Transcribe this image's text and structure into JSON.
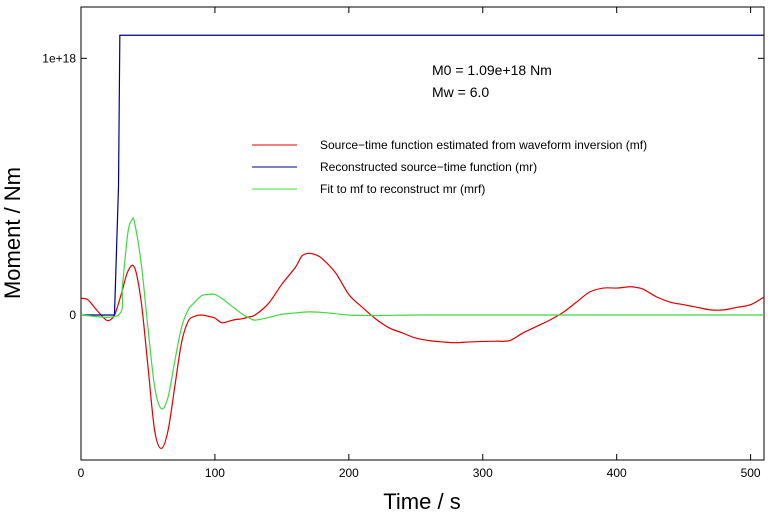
{
  "chart_data": {
    "type": "line",
    "xlabel": "Time / s",
    "ylabel": "Moment / Nm",
    "xlim": [
      0,
      510
    ],
    "ylim": [
      -5.65e+17,
      1.2e+18
    ],
    "x_ticks": [
      0,
      100,
      200,
      300,
      400,
      500
    ],
    "x_tick_labels": [
      "0",
      "100",
      "200",
      "300",
      "400",
      "500"
    ],
    "y_ticks": [
      0,
      1e+18
    ],
    "y_tick_labels": [
      "0",
      "1e+18"
    ],
    "annotations": [
      "M0 = 1.09e+18 Nm",
      "Mw = 6.0"
    ],
    "legend_position": "upper-right",
    "series": [
      {
        "name": "Source−time function estimated from waveform inversion (mf)",
        "color": "#e00000",
        "x": [
          0,
          5,
          10,
          15,
          20,
          25,
          30,
          35,
          40,
          45,
          50,
          55,
          60,
          65,
          70,
          75,
          80,
          85,
          90,
          95,
          100,
          105,
          110,
          115,
          120,
          125,
          130,
          140,
          150,
          160,
          165,
          170,
          175,
          180,
          190,
          200,
          210,
          220,
          230,
          240,
          250,
          260,
          270,
          280,
          290,
          300,
          310,
          320,
          330,
          340,
          350,
          360,
          370,
          380,
          390,
          400,
          410,
          415,
          420,
          430,
          440,
          450,
          460,
          470,
          480,
          490,
          500,
          510
        ],
        "y": [
          6.5e+16,
          6e+16,
          3e+16,
          0,
          -2.2e+16,
          0,
          8e+16,
          1.7e+17,
          1.85e+17,
          5e+16,
          -2e+17,
          -4.5e+17,
          -5.2e+17,
          -4.5e+17,
          -2.8e+17,
          -1.1e+17,
          -2.5e+16,
          -5000000000000000.0,
          0,
          -5000000000000000.0,
          -1.2e+16,
          -3e+16,
          -2.5e+16,
          -1.8e+16,
          -1.5e+16,
          -8000000000000000.0,
          0,
          4.5e+16,
          1.2e+17,
          1.85e+17,
          2.3e+17,
          2.4e+17,
          2.35e+17,
          2.2e+17,
          1.65e+17,
          8e+16,
          3e+16,
          -1.5e+16,
          -5e+16,
          -7e+16,
          -9e+16,
          -1e+17,
          -1.05e+17,
          -1.08e+17,
          -1.05e+17,
          -1.03e+17,
          -1.02e+17,
          -1e+17,
          -7e+16,
          -4.5e+16,
          -2e+16,
          1e+16,
          5e+16,
          9e+16,
          1.05e+17,
          1.05e+17,
          1.1e+17,
          1.07e+17,
          1e+17,
          7e+16,
          5e+16,
          4e+16,
          3e+16,
          2e+16,
          2e+16,
          3e+16,
          4e+16,
          7e+16
        ]
      },
      {
        "name": "Reconstructed source−time function (mr)",
        "color": "#00008b",
        "x": [
          0,
          25,
          28,
          29,
          510
        ],
        "y": [
          0,
          0,
          5e+17,
          1.09e+18,
          1.09e+18
        ]
      },
      {
        "name": "Fit to mf to reconstruct mr (mrf)",
        "color": "#40d840",
        "x": [
          0,
          28,
          31,
          35,
          38,
          40,
          45,
          50,
          55,
          60,
          65,
          70,
          75,
          80,
          85,
          90,
          95,
          100,
          105,
          110,
          115,
          120,
          125,
          130,
          140,
          150,
          160,
          170,
          180,
          190,
          200,
          220,
          250,
          300,
          400,
          510
        ],
        "y": [
          0,
          0,
          1.2e+17,
          3.2e+17,
          3.7e+17,
          3.6e+17,
          2e+17,
          -5e+16,
          -2.8e+17,
          -3.65e+17,
          -3.2e+17,
          -1.8e+17,
          -5e+16,
          2e+16,
          5e+16,
          7.5e+16,
          8e+16,
          8e+16,
          6.5e+16,
          4.5e+16,
          2.5e+16,
          5000000000000000.0,
          -1e+16,
          -2e+16,
          -1e+16,
          3000000000000000.0,
          8000000000000000.0,
          1.2e+16,
          1e+16,
          5000000000000000.0,
          0,
          -2000000000000000.0,
          0,
          0,
          0,
          0
        ]
      }
    ]
  }
}
